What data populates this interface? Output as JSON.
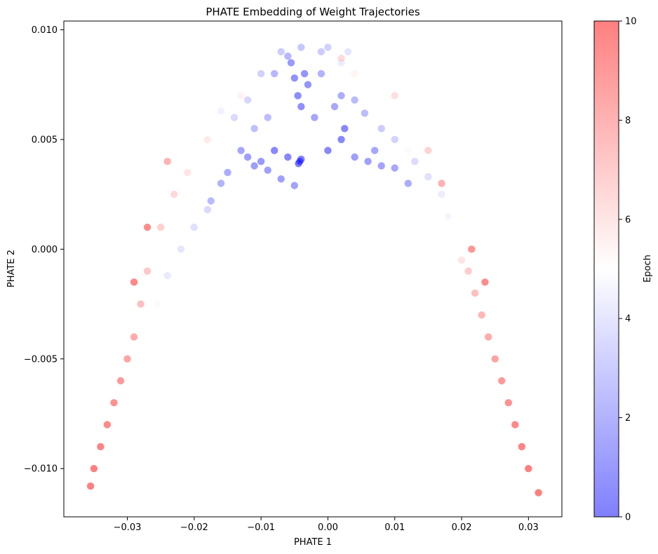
{
  "chart_data": {
    "type": "scatter",
    "title": "PHATE Embedding of Weight Trajectories",
    "xlabel": "PHATE 1",
    "ylabel": "PHATE 2",
    "xlim": [
      -0.0395,
      0.035
    ],
    "ylim": [
      -0.0122,
      0.0104
    ],
    "x_ticks": [
      -0.03,
      -0.02,
      -0.01,
      0.0,
      0.01,
      0.02,
      0.03
    ],
    "x_tick_labels": [
      "−0.03",
      "−0.02",
      "−0.01",
      "0.00",
      "0.01",
      "0.02",
      "0.03"
    ],
    "y_ticks": [
      0.01,
      0.005,
      0.0,
      -0.005,
      -0.01
    ],
    "y_tick_labels": [
      "0.010",
      "0.005",
      "0.000",
      "−0.005",
      "−0.010"
    ],
    "grid": false,
    "colorbar": {
      "label": "Epoch",
      "range": [
        0,
        10
      ],
      "ticks": [
        0,
        2,
        4,
        6,
        8,
        10
      ],
      "tick_labels": [
        "0",
        "2",
        "4",
        "6",
        "8",
        "10"
      ],
      "colormap": "bwr",
      "low_color": "#0000ff",
      "mid_color": "#ffffff",
      "high_color": "#ff0000",
      "alpha": 0.5
    },
    "series": [
      {
        "color_by": "epoch",
        "points": [
          {
            "x": -0.0042,
            "y": 0.004,
            "epoch": 0
          },
          {
            "x": -0.004,
            "y": 0.0041,
            "epoch": 0
          },
          {
            "x": -0.0044,
            "y": 0.0039,
            "epoch": 0
          },
          {
            "x": -0.008,
            "y": 0.0045,
            "epoch": 0.3
          },
          {
            "x": -0.006,
            "y": 0.0042,
            "epoch": 0.3
          },
          {
            "x": 0.0,
            "y": 0.0045,
            "epoch": 0.3
          },
          {
            "x": 0.002,
            "y": 0.005,
            "epoch": 0.3
          },
          {
            "x": 0.0025,
            "y": 0.0055,
            "epoch": 0.3
          },
          {
            "x": -0.0045,
            "y": 0.007,
            "epoch": 0.5
          },
          {
            "x": -0.004,
            "y": 0.0065,
            "epoch": 0.6
          },
          {
            "x": -0.005,
            "y": 0.0078,
            "epoch": 0.7
          },
          {
            "x": -0.0035,
            "y": 0.008,
            "epoch": 0.8
          },
          {
            "x": -0.003,
            "y": 0.0075,
            "epoch": 0.8
          },
          {
            "x": -0.0055,
            "y": 0.0085,
            "epoch": 1.0
          },
          {
            "x": -0.01,
            "y": 0.004,
            "epoch": 1.0
          },
          {
            "x": -0.012,
            "y": 0.0042,
            "epoch": 1.2
          },
          {
            "x": -0.011,
            "y": 0.0038,
            "epoch": 1.2
          },
          {
            "x": -0.009,
            "y": 0.0036,
            "epoch": 1.3
          },
          {
            "x": -0.007,
            "y": 0.0032,
            "epoch": 1.3
          },
          {
            "x": -0.005,
            "y": 0.0029,
            "epoch": 1.4
          },
          {
            "x": 0.004,
            "y": 0.0042,
            "epoch": 1.2
          },
          {
            "x": 0.006,
            "y": 0.004,
            "epoch": 1.3
          },
          {
            "x": 0.008,
            "y": 0.0038,
            "epoch": 1.4
          },
          {
            "x": 0.007,
            "y": 0.0045,
            "epoch": 1.5
          },
          {
            "x": 0.01,
            "y": 0.0037,
            "epoch": 1.6
          },
          {
            "x": 0.012,
            "y": 0.003,
            "epoch": 1.7
          },
          {
            "x": -0.013,
            "y": 0.0045,
            "epoch": 1.5
          },
          {
            "x": -0.015,
            "y": 0.0035,
            "epoch": 1.8
          },
          {
            "x": -0.016,
            "y": 0.003,
            "epoch": 2.0
          },
          {
            "x": -0.0175,
            "y": 0.0022,
            "epoch": 2.3
          },
          {
            "x": -0.002,
            "y": 0.006,
            "epoch": 1.5
          },
          {
            "x": 0.001,
            "y": 0.0065,
            "epoch": 1.6
          },
          {
            "x": 0.002,
            "y": 0.007,
            "epoch": 1.8
          },
          {
            "x": -0.001,
            "y": 0.008,
            "epoch": 2.0
          },
          {
            "x": -0.006,
            "y": 0.0088,
            "epoch": 2.2
          },
          {
            "x": -0.008,
            "y": 0.008,
            "epoch": 2.2
          },
          {
            "x": 0.004,
            "y": 0.0068,
            "epoch": 2.3
          },
          {
            "x": 0.0055,
            "y": 0.0062,
            "epoch": 2.4
          },
          {
            "x": -0.009,
            "y": 0.006,
            "epoch": 2.4
          },
          {
            "x": -0.011,
            "y": 0.0055,
            "epoch": 2.5
          },
          {
            "x": -0.004,
            "y": 0.0092,
            "epoch": 2.8
          },
          {
            "x": -0.001,
            "y": 0.009,
            "epoch": 3.0
          },
          {
            "x": 0.0,
            "y": 0.0092,
            "epoch": 3.2
          },
          {
            "x": -0.007,
            "y": 0.009,
            "epoch": 3.0
          },
          {
            "x": -0.01,
            "y": 0.008,
            "epoch": 3.2
          },
          {
            "x": -0.012,
            "y": 0.0068,
            "epoch": 3.4
          },
          {
            "x": -0.014,
            "y": 0.006,
            "epoch": 3.5
          },
          {
            "x": 0.008,
            "y": 0.0055,
            "epoch": 3.0
          },
          {
            "x": 0.01,
            "y": 0.005,
            "epoch": 3.3
          },
          {
            "x": 0.013,
            "y": 0.004,
            "epoch": 3.6
          },
          {
            "x": 0.015,
            "y": 0.0033,
            "epoch": 3.8
          },
          {
            "x": -0.018,
            "y": 0.0018,
            "epoch": 3.5
          },
          {
            "x": -0.02,
            "y": 0.001,
            "epoch": 3.8
          },
          {
            "x": -0.022,
            "y": 0.0,
            "epoch": 4.0
          },
          {
            "x": -0.024,
            "y": -0.0012,
            "epoch": 4.2
          },
          {
            "x": 0.003,
            "y": 0.009,
            "epoch": 4.0
          },
          {
            "x": 0.002,
            "y": 0.0085,
            "epoch": 4.3
          },
          {
            "x": 0.017,
            "y": 0.0025,
            "epoch": 4.3
          },
          {
            "x": 0.018,
            "y": 0.0015,
            "epoch": 4.6
          },
          {
            "x": -0.016,
            "y": 0.0063,
            "epoch": 4.5
          },
          {
            "x": -0.0255,
            "y": -0.0025,
            "epoch": 4.8
          },
          {
            "x": -0.0265,
            "y": -0.004,
            "epoch": 5.0
          },
          {
            "x": 0.019,
            "y": 0.0005,
            "epoch": 5.0
          },
          {
            "x": 0.012,
            "y": 0.0045,
            "epoch": 5.2
          },
          {
            "x": 0.004,
            "y": 0.008,
            "epoch": 5.4
          },
          {
            "x": -0.013,
            "y": 0.007,
            "epoch": 5.5
          },
          {
            "x": -0.018,
            "y": 0.005,
            "epoch": 5.8
          },
          {
            "x": -0.021,
            "y": 0.0035,
            "epoch": 6.0
          },
          {
            "x": 0.02,
            "y": -0.0005,
            "epoch": 6.0
          },
          {
            "x": 0.01,
            "y": 0.007,
            "epoch": 6.2
          },
          {
            "x": 0.002,
            "y": 0.0087,
            "epoch": 6.4
          },
          {
            "x": -0.023,
            "y": 0.0025,
            "epoch": 6.5
          },
          {
            "x": -0.025,
            "y": 0.001,
            "epoch": 6.8
          },
          {
            "x": 0.015,
            "y": 0.0045,
            "epoch": 6.7
          },
          {
            "x": 0.021,
            "y": -0.001,
            "epoch": 7.0
          },
          {
            "x": -0.027,
            "y": -0.001,
            "epoch": 7.2
          },
          {
            "x": -0.028,
            "y": -0.0025,
            "epoch": 7.5
          },
          {
            "x": 0.022,
            "y": -0.002,
            "epoch": 7.5
          },
          {
            "x": 0.023,
            "y": -0.003,
            "epoch": 7.8
          },
          {
            "x": -0.024,
            "y": 0.004,
            "epoch": 8.0
          },
          {
            "x": 0.017,
            "y": 0.003,
            "epoch": 8.0
          },
          {
            "x": -0.029,
            "y": -0.004,
            "epoch": 8.3
          },
          {
            "x": 0.024,
            "y": -0.004,
            "epoch": 8.3
          },
          {
            "x": -0.03,
            "y": -0.005,
            "epoch": 8.6
          },
          {
            "x": 0.025,
            "y": -0.005,
            "epoch": 8.6
          },
          {
            "x": -0.031,
            "y": -0.006,
            "epoch": 9.0
          },
          {
            "x": 0.026,
            "y": -0.006,
            "epoch": 9.0
          },
          {
            "x": -0.032,
            "y": -0.007,
            "epoch": 9.3
          },
          {
            "x": 0.027,
            "y": -0.007,
            "epoch": 9.3
          },
          {
            "x": -0.033,
            "y": -0.008,
            "epoch": 9.6
          },
          {
            "x": 0.028,
            "y": -0.008,
            "epoch": 9.6
          },
          {
            "x": -0.034,
            "y": -0.009,
            "epoch": 9.8
          },
          {
            "x": 0.029,
            "y": -0.009,
            "epoch": 9.8
          },
          {
            "x": -0.035,
            "y": -0.01,
            "epoch": 10
          },
          {
            "x": 0.03,
            "y": -0.01,
            "epoch": 10
          },
          {
            "x": -0.0355,
            "y": -0.0108,
            "epoch": 10
          },
          {
            "x": 0.0315,
            "y": -0.0111,
            "epoch": 10
          },
          {
            "x": -0.027,
            "y": 0.001,
            "epoch": 9.5
          },
          {
            "x": -0.029,
            "y": -0.0015,
            "epoch": 9.7
          },
          {
            "x": 0.0215,
            "y": 0.0,
            "epoch": 9.2
          },
          {
            "x": 0.0235,
            "y": -0.0015,
            "epoch": 9.5
          }
        ]
      }
    ]
  }
}
